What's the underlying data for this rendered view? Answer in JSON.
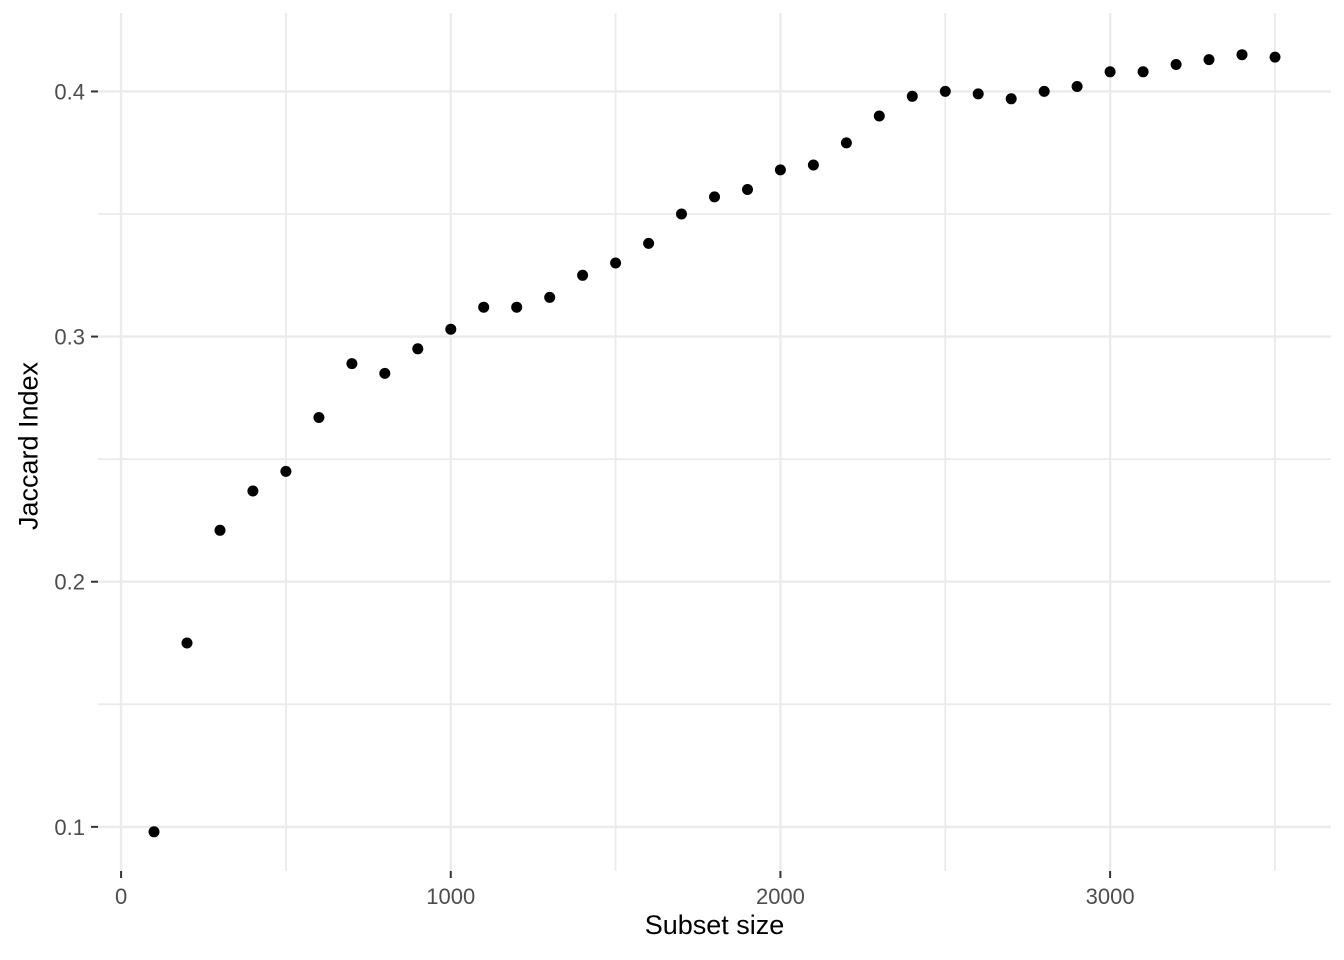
{
  "chart_data": {
    "type": "scatter",
    "title": "",
    "xlabel": "Subset size",
    "ylabel": "Jaccard Index",
    "x": [
      100,
      200,
      300,
      400,
      500,
      600,
      700,
      800,
      900,
      1000,
      1100,
      1200,
      1300,
      1400,
      1500,
      1600,
      1700,
      1800,
      1900,
      2000,
      2100,
      2200,
      2300,
      2400,
      2500,
      2600,
      2700,
      2800,
      2900,
      3000,
      3100,
      3200,
      3300,
      3400,
      3500
    ],
    "y": [
      0.098,
      0.175,
      0.221,
      0.237,
      0.245,
      0.267,
      0.289,
      0.285,
      0.295,
      0.303,
      0.312,
      0.312,
      0.316,
      0.325,
      0.33,
      0.338,
      0.35,
      0.357,
      0.36,
      0.368,
      0.37,
      0.379,
      0.39,
      0.398,
      0.4,
      0.399,
      0.397,
      0.4,
      0.402,
      0.408,
      0.408,
      0.411,
      0.413,
      0.415,
      0.414
    ],
    "xlim": [
      -70,
      3670
    ],
    "ylim": [
      0.082,
      0.432
    ],
    "x_major_ticks": [
      0,
      1000,
      2000,
      3000
    ],
    "x_tick_labels": [
      "0",
      "1000",
      "2000",
      "3000"
    ],
    "x_minor_ticks": [
      500,
      1500,
      2500,
      3500
    ],
    "y_major_ticks": [
      0.1,
      0.2,
      0.3,
      0.4
    ],
    "y_tick_labels": [
      "0.1",
      "0.2",
      "0.3",
      "0.4"
    ],
    "y_minor_ticks": [
      0.15,
      0.25,
      0.35
    ],
    "grid": true,
    "legend": false,
    "style": {
      "background": "#FFFFFF",
      "point_color": "#000000",
      "point_radius": 5.5,
      "grid_color": "#EBEBEB",
      "tick_mark_color": "#333333",
      "tick_label_color": "#4D4D4D",
      "axis_title_color": "#000000"
    }
  }
}
